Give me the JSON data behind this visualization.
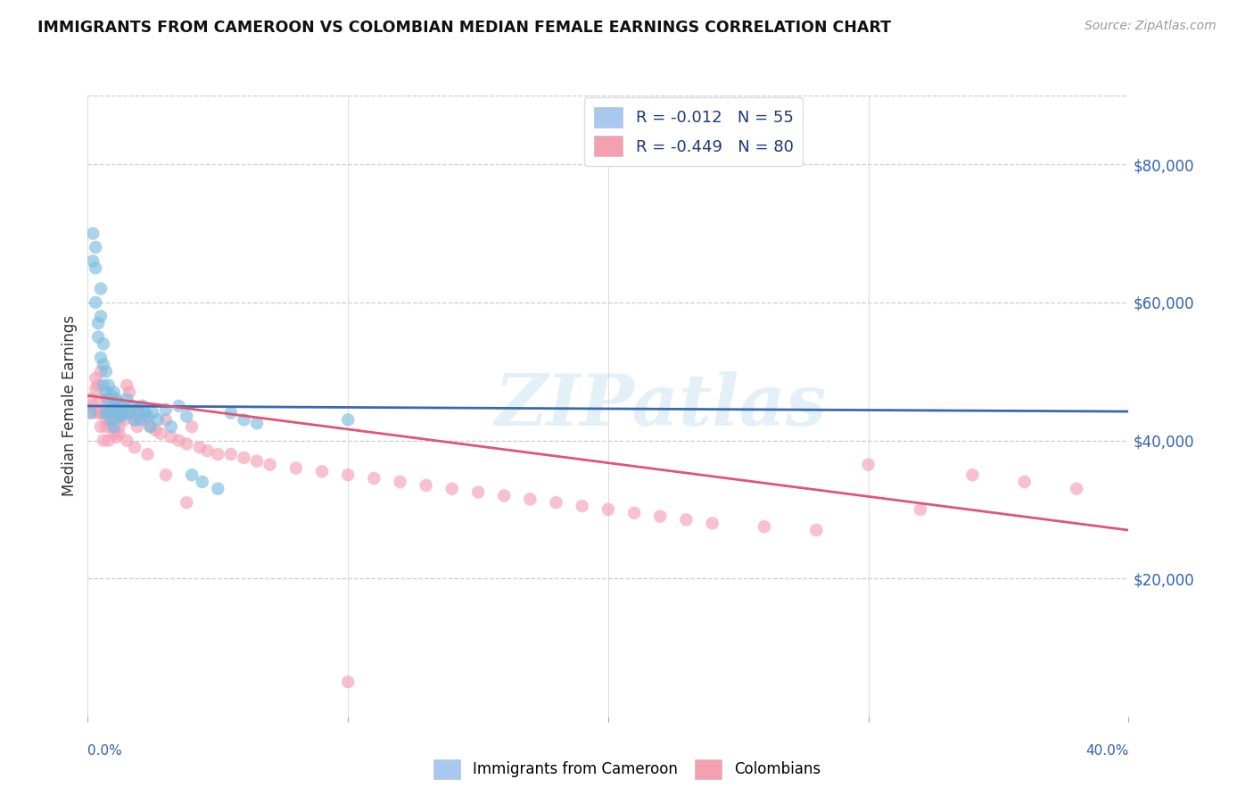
{
  "title": "IMMIGRANTS FROM CAMEROON VS COLOMBIAN MEDIAN FEMALE EARNINGS CORRELATION CHART",
  "source": "Source: ZipAtlas.com",
  "ylabel": "Median Female Earnings",
  "y_ticks": [
    20000,
    40000,
    60000,
    80000
  ],
  "y_tick_labels": [
    "$20,000",
    "$40,000",
    "$60,000",
    "$80,000"
  ],
  "xmin": 0.0,
  "xmax": 0.4,
  "ymin": 0,
  "ymax": 90000,
  "legend_label_blue": "R = -0.012   N = 55",
  "legend_label_pink": "R = -0.449   N = 80",
  "legend_color_blue": "#a8c8f0",
  "legend_color_pink": "#f5a0b0",
  "watermark": "ZIPatlas",
  "blue_dot_color": "#7bbde0",
  "pink_dot_color": "#f4a0b8",
  "blue_line_color": "#3a68b0",
  "pink_line_color": "#e05575",
  "blue_trend_x": [
    0.0,
    0.4
  ],
  "blue_trend_y": [
    45000,
    44200
  ],
  "pink_trend_x": [
    0.0,
    0.4
  ],
  "pink_trend_y": [
    46500,
    27000
  ],
  "blue_scatter_x": [
    0.001,
    0.002,
    0.002,
    0.003,
    0.003,
    0.003,
    0.004,
    0.004,
    0.005,
    0.005,
    0.005,
    0.006,
    0.006,
    0.006,
    0.007,
    0.007,
    0.007,
    0.008,
    0.008,
    0.008,
    0.009,
    0.009,
    0.01,
    0.01,
    0.01,
    0.011,
    0.011,
    0.012,
    0.012,
    0.013,
    0.013,
    0.014,
    0.015,
    0.016,
    0.017,
    0.018,
    0.019,
    0.02,
    0.021,
    0.022,
    0.023,
    0.024,
    0.025,
    0.027,
    0.03,
    0.032,
    0.035,
    0.038,
    0.04,
    0.044,
    0.05,
    0.055,
    0.06,
    0.065,
    0.1
  ],
  "blue_scatter_y": [
    44000,
    70000,
    66000,
    68000,
    65000,
    60000,
    57000,
    55000,
    62000,
    58000,
    52000,
    54000,
    51000,
    48000,
    50000,
    47000,
    44000,
    48000,
    46000,
    44000,
    46500,
    43000,
    47000,
    45000,
    42000,
    46000,
    44500,
    45500,
    43500,
    45000,
    43500,
    44000,
    46000,
    44000,
    45000,
    43000,
    44500,
    43000,
    45000,
    44000,
    43500,
    42000,
    44000,
    43000,
    44500,
    42000,
    45000,
    43500,
    35000,
    34000,
    33000,
    44000,
    43000,
    42500,
    43000
  ],
  "pink_scatter_x": [
    0.001,
    0.002,
    0.002,
    0.003,
    0.003,
    0.004,
    0.004,
    0.005,
    0.005,
    0.005,
    0.006,
    0.006,
    0.007,
    0.007,
    0.008,
    0.008,
    0.009,
    0.01,
    0.01,
    0.011,
    0.011,
    0.012,
    0.013,
    0.014,
    0.015,
    0.016,
    0.017,
    0.018,
    0.019,
    0.02,
    0.022,
    0.024,
    0.026,
    0.028,
    0.03,
    0.032,
    0.035,
    0.038,
    0.04,
    0.043,
    0.046,
    0.05,
    0.055,
    0.06,
    0.065,
    0.07,
    0.08,
    0.09,
    0.1,
    0.11,
    0.12,
    0.13,
    0.14,
    0.15,
    0.16,
    0.17,
    0.18,
    0.19,
    0.2,
    0.21,
    0.22,
    0.23,
    0.24,
    0.26,
    0.28,
    0.3,
    0.32,
    0.34,
    0.36,
    0.38,
    0.005,
    0.007,
    0.009,
    0.012,
    0.015,
    0.018,
    0.023,
    0.03,
    0.038,
    0.1
  ],
  "pink_scatter_y": [
    46000,
    45000,
    44000,
    49000,
    47500,
    48000,
    44000,
    50000,
    46000,
    42000,
    44000,
    40000,
    46000,
    42000,
    44000,
    40000,
    43000,
    44000,
    41000,
    43500,
    40500,
    42000,
    44000,
    43000,
    48000,
    47000,
    44000,
    43000,
    42000,
    44000,
    43000,
    42000,
    41500,
    41000,
    43000,
    40500,
    40000,
    39500,
    42000,
    39000,
    38500,
    38000,
    38000,
    37500,
    37000,
    36500,
    36000,
    35500,
    35000,
    34500,
    34000,
    33500,
    33000,
    32500,
    32000,
    31500,
    31000,
    30500,
    30000,
    29500,
    29000,
    28500,
    28000,
    27500,
    27000,
    36500,
    30000,
    35000,
    34000,
    33000,
    44000,
    43000,
    42000,
    41000,
    40000,
    39000,
    38000,
    35000,
    31000,
    5000
  ]
}
